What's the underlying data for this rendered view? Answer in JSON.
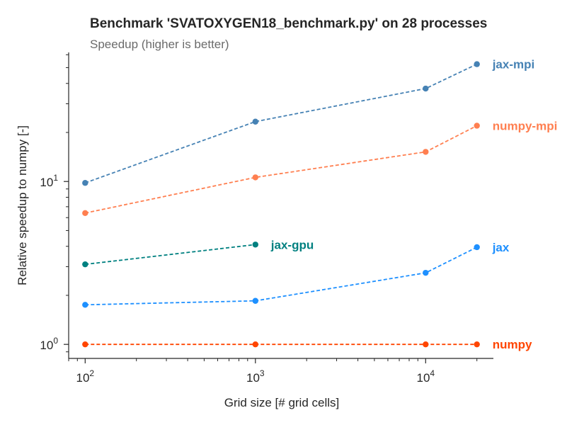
{
  "chart_data": {
    "type": "line",
    "title": "Benchmark 'SVATOXYGEN18_benchmark.py' on 28 processes",
    "subtitle": "Speedup (higher is better)",
    "xlabel": "Grid size [# grid cells]",
    "ylabel": "Relative speedup to numpy [-]",
    "xscale": "log",
    "yscale": "log",
    "xlim": [
      80,
      25000
    ],
    "ylim": [
      0.82,
      62
    ],
    "grid": false,
    "legend": "none (labels at series ends)",
    "x_ticks": [
      {
        "value": 100,
        "base": "10",
        "exp": "2"
      },
      {
        "value": 1000,
        "base": "10",
        "exp": "3"
      },
      {
        "value": 10000,
        "base": "10",
        "exp": "4"
      }
    ],
    "y_ticks": [
      {
        "value": 1,
        "base": "10",
        "exp": "0"
      },
      {
        "value": 10,
        "base": "10",
        "exp": "1"
      }
    ],
    "series": [
      {
        "name": "jax-mpi",
        "color": "#4682b4",
        "x": [
          100,
          1000,
          10000,
          20000
        ],
        "y": [
          9.8,
          23.3,
          37.2,
          52.5
        ]
      },
      {
        "name": "numpy-mpi",
        "color": "#ff7f50",
        "x": [
          100,
          1000,
          10000,
          20000
        ],
        "y": [
          6.4,
          10.6,
          15.2,
          22.0
        ]
      },
      {
        "name": "jax-gpu",
        "color": "#008080",
        "x": [
          100,
          1000
        ],
        "y": [
          3.1,
          4.1
        ]
      },
      {
        "name": "jax",
        "color": "#1e90ff",
        "x": [
          100,
          1000,
          10000,
          20000
        ],
        "y": [
          1.75,
          1.85,
          2.75,
          3.95
        ]
      },
      {
        "name": "numpy",
        "color": "#ff4500",
        "x": [
          100,
          1000,
          10000,
          20000
        ],
        "y": [
          1.0,
          1.0,
          1.0,
          1.0
        ]
      }
    ]
  }
}
